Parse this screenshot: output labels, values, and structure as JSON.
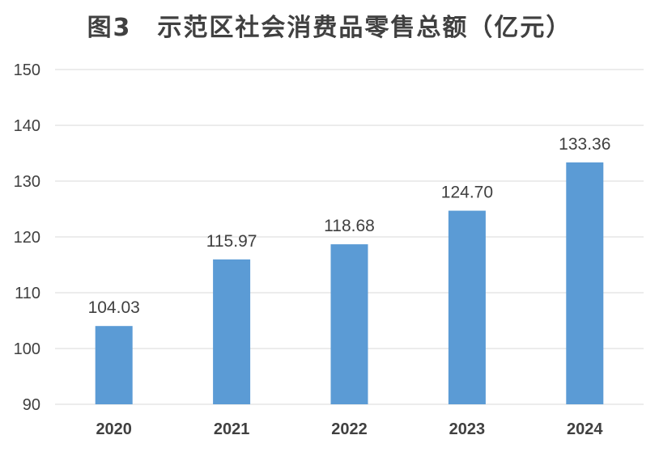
{
  "chart_data": {
    "type": "bar",
    "title": "图3　示范区社会消费品零售总额（亿元）",
    "categories": [
      "2020",
      "2021",
      "2022",
      "2023",
      "2024"
    ],
    "values": [
      104.03,
      115.97,
      118.68,
      124.7,
      133.36
    ],
    "data_labels": [
      "104.03",
      "115.97",
      "118.68",
      "124.70",
      "133.36"
    ],
    "ylim": [
      90,
      150
    ],
    "yticks": [
      90,
      100,
      110,
      120,
      130,
      140,
      150
    ],
    "xlabel": "",
    "ylabel": "",
    "grid": true,
    "bar_color": "#5b9bd5",
    "grid_color": "#d9d9d9"
  }
}
